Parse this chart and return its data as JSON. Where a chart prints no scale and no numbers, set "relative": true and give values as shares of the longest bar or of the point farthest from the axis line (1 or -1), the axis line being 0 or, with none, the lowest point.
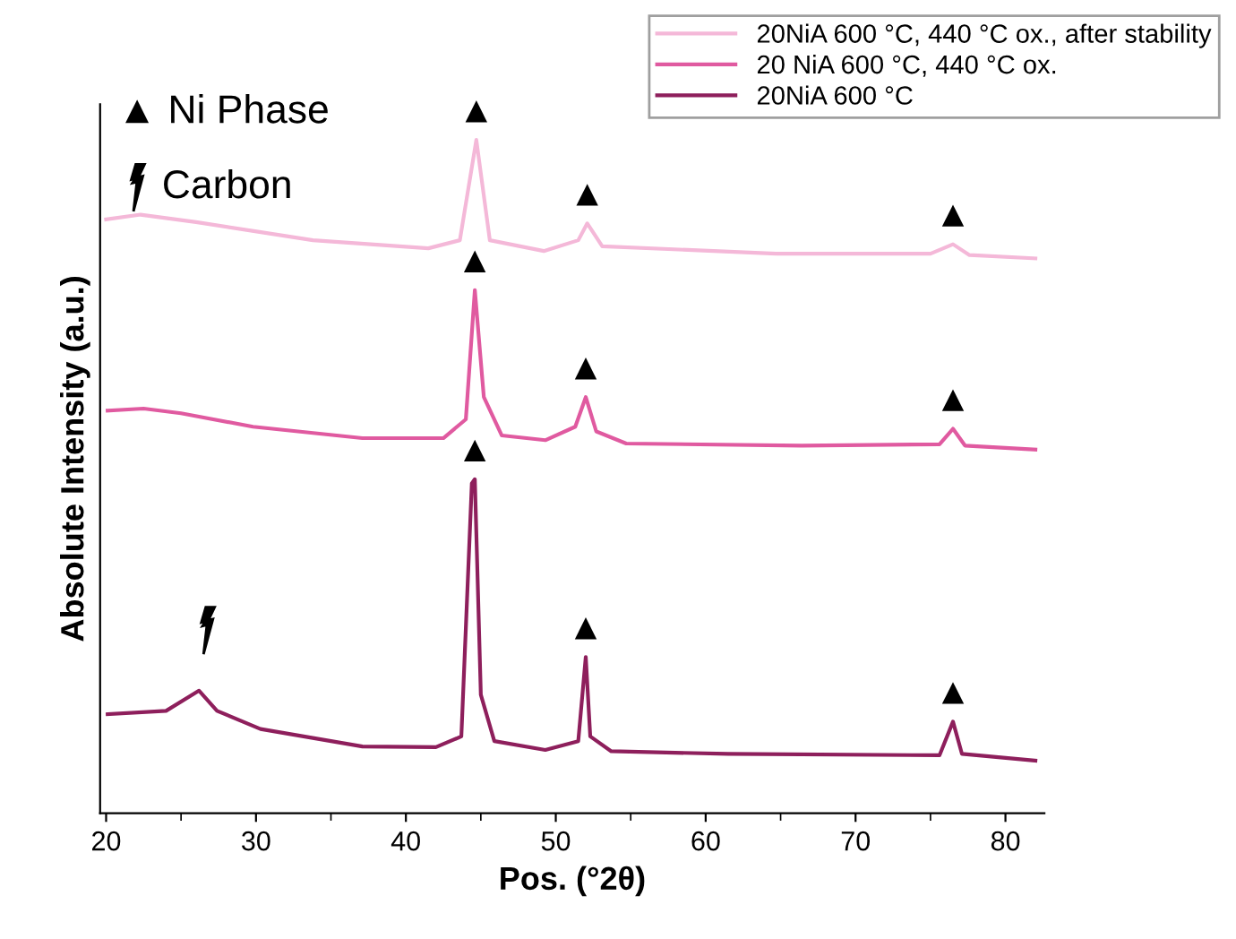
{
  "chart_data": {
    "type": "line",
    "relative": true,
    "xlabel": "Pos. (°2θ)",
    "ylabel": "Absolute Intensity (a.u.)",
    "xlim": [
      19.6,
      82.6
    ],
    "xticks": [
      20,
      30,
      40,
      50,
      60,
      70,
      80
    ],
    "grid": false,
    "legend": "top right",
    "marker": "none",
    "line_style": "solid",
    "series": [
      {
        "name": "20NiA 600 °C, 440 °C ox., after stability",
        "color": "#f4b8d8",
        "x": [
          20.0,
          22.3,
          26,
          33.8,
          41.5,
          43.6,
          44.7,
          45.6,
          49.2,
          51.5,
          52.1,
          53.1,
          64.7,
          75,
          76.5,
          77.6,
          82
        ],
        "values": [
          0.882,
          0.889,
          0.878,
          0.851,
          0.839,
          0.851,
          1.0,
          0.851,
          0.835,
          0.851,
          0.876,
          0.842,
          0.831,
          0.831,
          0.845,
          0.829,
          0.824
        ]
      },
      {
        "name": "20 NiA 600 °C, 440 °C ox.",
        "color": "#e05aa0",
        "x": [
          20.1,
          22.5,
          25,
          29.8,
          37.1,
          42.5,
          44.0,
          44.6,
          45.2,
          46.4,
          49.3,
          51.3,
          52.0,
          52.7,
          54.7,
          66.4,
          75.6,
          76.5,
          77.3,
          82
        ],
        "values": [
          0.598,
          0.601,
          0.594,
          0.574,
          0.557,
          0.557,
          0.585,
          0.777,
          0.618,
          0.561,
          0.554,
          0.574,
          0.618,
          0.567,
          0.549,
          0.546,
          0.548,
          0.571,
          0.546,
          0.54
        ]
      },
      {
        "name": "20NiA 600 °C",
        "color": "#8e1f5c",
        "x": [
          20.1,
          24,
          26.2,
          27.4,
          30.3,
          37.1,
          42,
          43.7,
          44.4,
          44.6,
          45.0,
          45.9,
          49.3,
          51.5,
          52.0,
          52.3,
          53.7,
          61.5,
          75.6,
          76.5,
          77.1,
          82
        ],
        "values": [
          0.147,
          0.152,
          0.182,
          0.152,
          0.125,
          0.099,
          0.098,
          0.114,
          0.49,
          0.496,
          0.176,
          0.107,
          0.094,
          0.107,
          0.232,
          0.114,
          0.092,
          0.088,
          0.086,
          0.136,
          0.088,
          0.078
        ]
      }
    ],
    "annotations": [
      "▲ Ni Phase",
      "Carbon",
      {
        "text": "▲",
        "x": 44.7,
        "y": 1.0
      },
      {
        "text": "▲",
        "x": 52.1,
        "y": 0.876
      },
      {
        "text": "▲",
        "x": 76.5,
        "y": 0.845
      },
      {
        "text": "▲",
        "x": 44.6,
        "y": 0.777
      },
      {
        "text": "▲",
        "x": 52.0,
        "y": 0.618
      },
      {
        "text": "▲",
        "x": 76.5,
        "y": 0.571
      },
      {
        "text": "▲",
        "x": 44.6,
        "y": 0.496
      },
      {
        "text": "▲",
        "x": 52.0,
        "y": 0.232
      },
      {
        "text": "▲",
        "x": 76.5,
        "y": 0.136
      }
    ]
  }
}
